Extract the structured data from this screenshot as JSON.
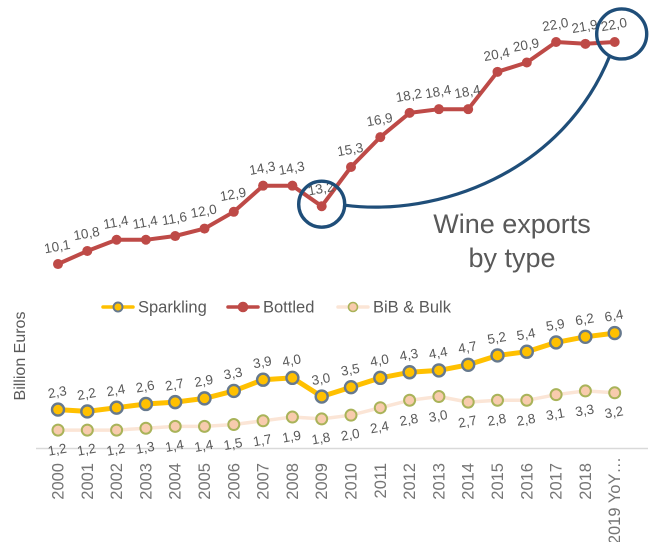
{
  "chart_data": {
    "type": "line",
    "title": "Wine exports by type",
    "title_lines": [
      "Wine exports",
      "by type"
    ],
    "ylabel": "Billion Euros",
    "xlabel": "",
    "ylim": [
      0,
      24
    ],
    "grid": false,
    "legend_position": "center-left horizontal, between Bottled and Sparkling lines",
    "x_categories": [
      "2000",
      "2001",
      "2002",
      "2003",
      "2004",
      "2005",
      "2006",
      "2007",
      "2008",
      "2009",
      "2010",
      "2011",
      "2012",
      "2013",
      "2014",
      "2015",
      "2016",
      "2017",
      "2018",
      "2019 YoY…"
    ],
    "series": [
      {
        "name": "Sparkling",
        "line_color": "#FFC000",
        "line_width": 5,
        "marker_fill": "#FFC000",
        "marker_stroke": "#66798E",
        "marker_stroke_width": 2.4,
        "marker_radius": 6,
        "label_side": "above",
        "values": [
          2.3,
          2.2,
          2.4,
          2.6,
          2.7,
          2.9,
          3.3,
          3.9,
          4.0,
          3.0,
          3.5,
          4.0,
          4.3,
          4.4,
          4.7,
          5.2,
          5.4,
          5.9,
          6.2,
          6.4
        ],
        "value_labels": [
          "2,3",
          "2,2",
          "2,4",
          "2,6",
          "2,7",
          "2,9",
          "3,3",
          "3,9",
          "4,0",
          "3,0",
          "3,5",
          "4,0",
          "4,3",
          "4,4",
          "4,7",
          "5,2",
          "5,4",
          "5,9",
          "6,2",
          "6,4"
        ]
      },
      {
        "name": "Bottled",
        "line_color": "#BE4A47",
        "line_width": 4,
        "marker_fill": "#BE4A47",
        "marker_stroke": "#BE4A47",
        "marker_stroke_width": 0,
        "marker_radius": 5,
        "label_side": "above",
        "values": [
          10.1,
          10.8,
          11.4,
          11.4,
          11.6,
          12.0,
          12.9,
          14.3,
          14.3,
          13.2,
          15.3,
          16.9,
          18.2,
          18.4,
          18.4,
          20.4,
          20.9,
          22.0,
          21.9,
          22.0
        ],
        "value_labels": [
          "10,1",
          "10,8",
          "11,4",
          "11,4",
          "11,6",
          "12,0",
          "12,9",
          "14,3",
          "14,3",
          "13,2",
          "15,3",
          "16,9",
          "18,2",
          "18,4",
          "18,4",
          "20,4",
          "20,9",
          "22,0",
          "21,9",
          "22,0"
        ]
      },
      {
        "name": "BiB & Bulk",
        "line_color": "#FBE5D6",
        "line_width": 3.5,
        "marker_fill": "#F8CBAD",
        "marker_stroke": "#A9B359",
        "marker_stroke_width": 2,
        "marker_radius": 5.5,
        "label_side": "below",
        "values": [
          1.2,
          1.2,
          1.2,
          1.3,
          1.4,
          1.4,
          1.5,
          1.7,
          1.9,
          1.8,
          2.0,
          2.4,
          2.8,
          3.0,
          2.7,
          2.8,
          2.8,
          3.1,
          3.3,
          3.2
        ],
        "value_labels": [
          "1,2",
          "1,2",
          "1,2",
          "1,3",
          "1,4",
          "1,4",
          "1,5",
          "1,7",
          "1,9",
          "1,8",
          "2,0",
          "2,4",
          "2,8",
          "3,0",
          "2,7",
          "2,8",
          "2,8",
          "3,1",
          "3,3",
          "3,2"
        ]
      }
    ],
    "legend_order": [
      "Sparkling",
      "Bottled",
      "BiB & Bulk"
    ],
    "z_order": [
      "BiB & Bulk",
      "Sparkling",
      "Bottled"
    ],
    "annotations": {
      "color": "#1F4E79",
      "circled_points": [
        {
          "series": "Bottled",
          "category": "2009",
          "value_label": "13,2"
        },
        {
          "series": "Bottled",
          "category": "2019 YoY…",
          "value_label": "22,0"
        }
      ],
      "connector": "curved line joining the 2009 circle to the 2019 circle"
    },
    "colors": {
      "value_label": "#595959",
      "axis_tick_label": "#757575",
      "axis_line": "#D9D9D9",
      "title_text": "#595959",
      "legend_text": "#595959",
      "background": "#FFFFFF"
    }
  }
}
